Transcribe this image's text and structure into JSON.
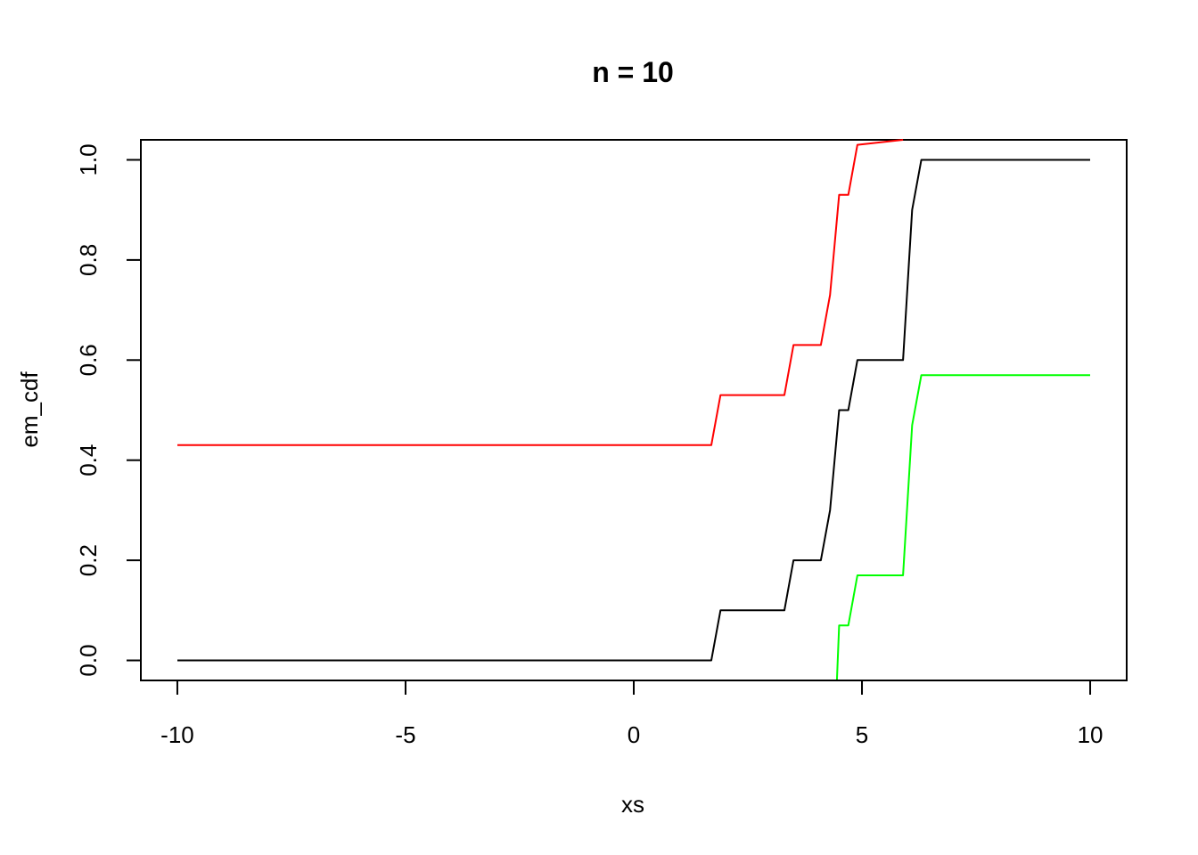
{
  "chart_data": {
    "type": "line",
    "title": "n = 10",
    "xlabel": "xs",
    "ylabel": "em_cdf",
    "xlim": [
      -10.8,
      10.8
    ],
    "ylim": [
      -0.04,
      1.04
    ],
    "x_ticks": [
      -10,
      -5,
      0,
      5,
      10
    ],
    "x_tick_labels": [
      "-10",
      "-5",
      "0",
      "5",
      "10"
    ],
    "y_ticks": [
      0,
      0.2,
      0.4,
      0.6,
      0.8,
      1.0
    ],
    "y_tick_labels": [
      "0.0",
      "0.2",
      "0.4",
      "0.6",
      "0.8",
      "1.0"
    ],
    "grid": false,
    "series": [
      {
        "color": "#000000",
        "x": [
          -10,
          1.7,
          1.9,
          3.3,
          3.5,
          4.1,
          4.3,
          4.5,
          4.7,
          4.9,
          5.9,
          6.1,
          6.3,
          10
        ],
        "y": [
          0,
          0,
          0.1,
          0.1,
          0.2,
          0.2,
          0.3,
          0.5,
          0.5,
          0.6,
          0.6,
          0.9,
          1.0,
          1.0
        ]
      },
      {
        "color": "#ff0000",
        "x": [
          -10,
          1.7,
          1.9,
          3.3,
          3.5,
          4.1,
          4.3,
          4.5,
          4.7,
          4.9,
          5.9
        ],
        "y": [
          0.43,
          0.43,
          0.53,
          0.53,
          0.63,
          0.63,
          0.73,
          0.93,
          0.93,
          1.03,
          1.04
        ]
      },
      {
        "color": "#00ff00",
        "x": [
          4.45,
          4.5,
          4.7,
          4.9,
          5.9,
          6.1,
          6.3,
          10
        ],
        "y": [
          -0.04,
          0.07,
          0.07,
          0.17,
          0.17,
          0.47,
          0.57,
          0.57
        ]
      }
    ]
  }
}
